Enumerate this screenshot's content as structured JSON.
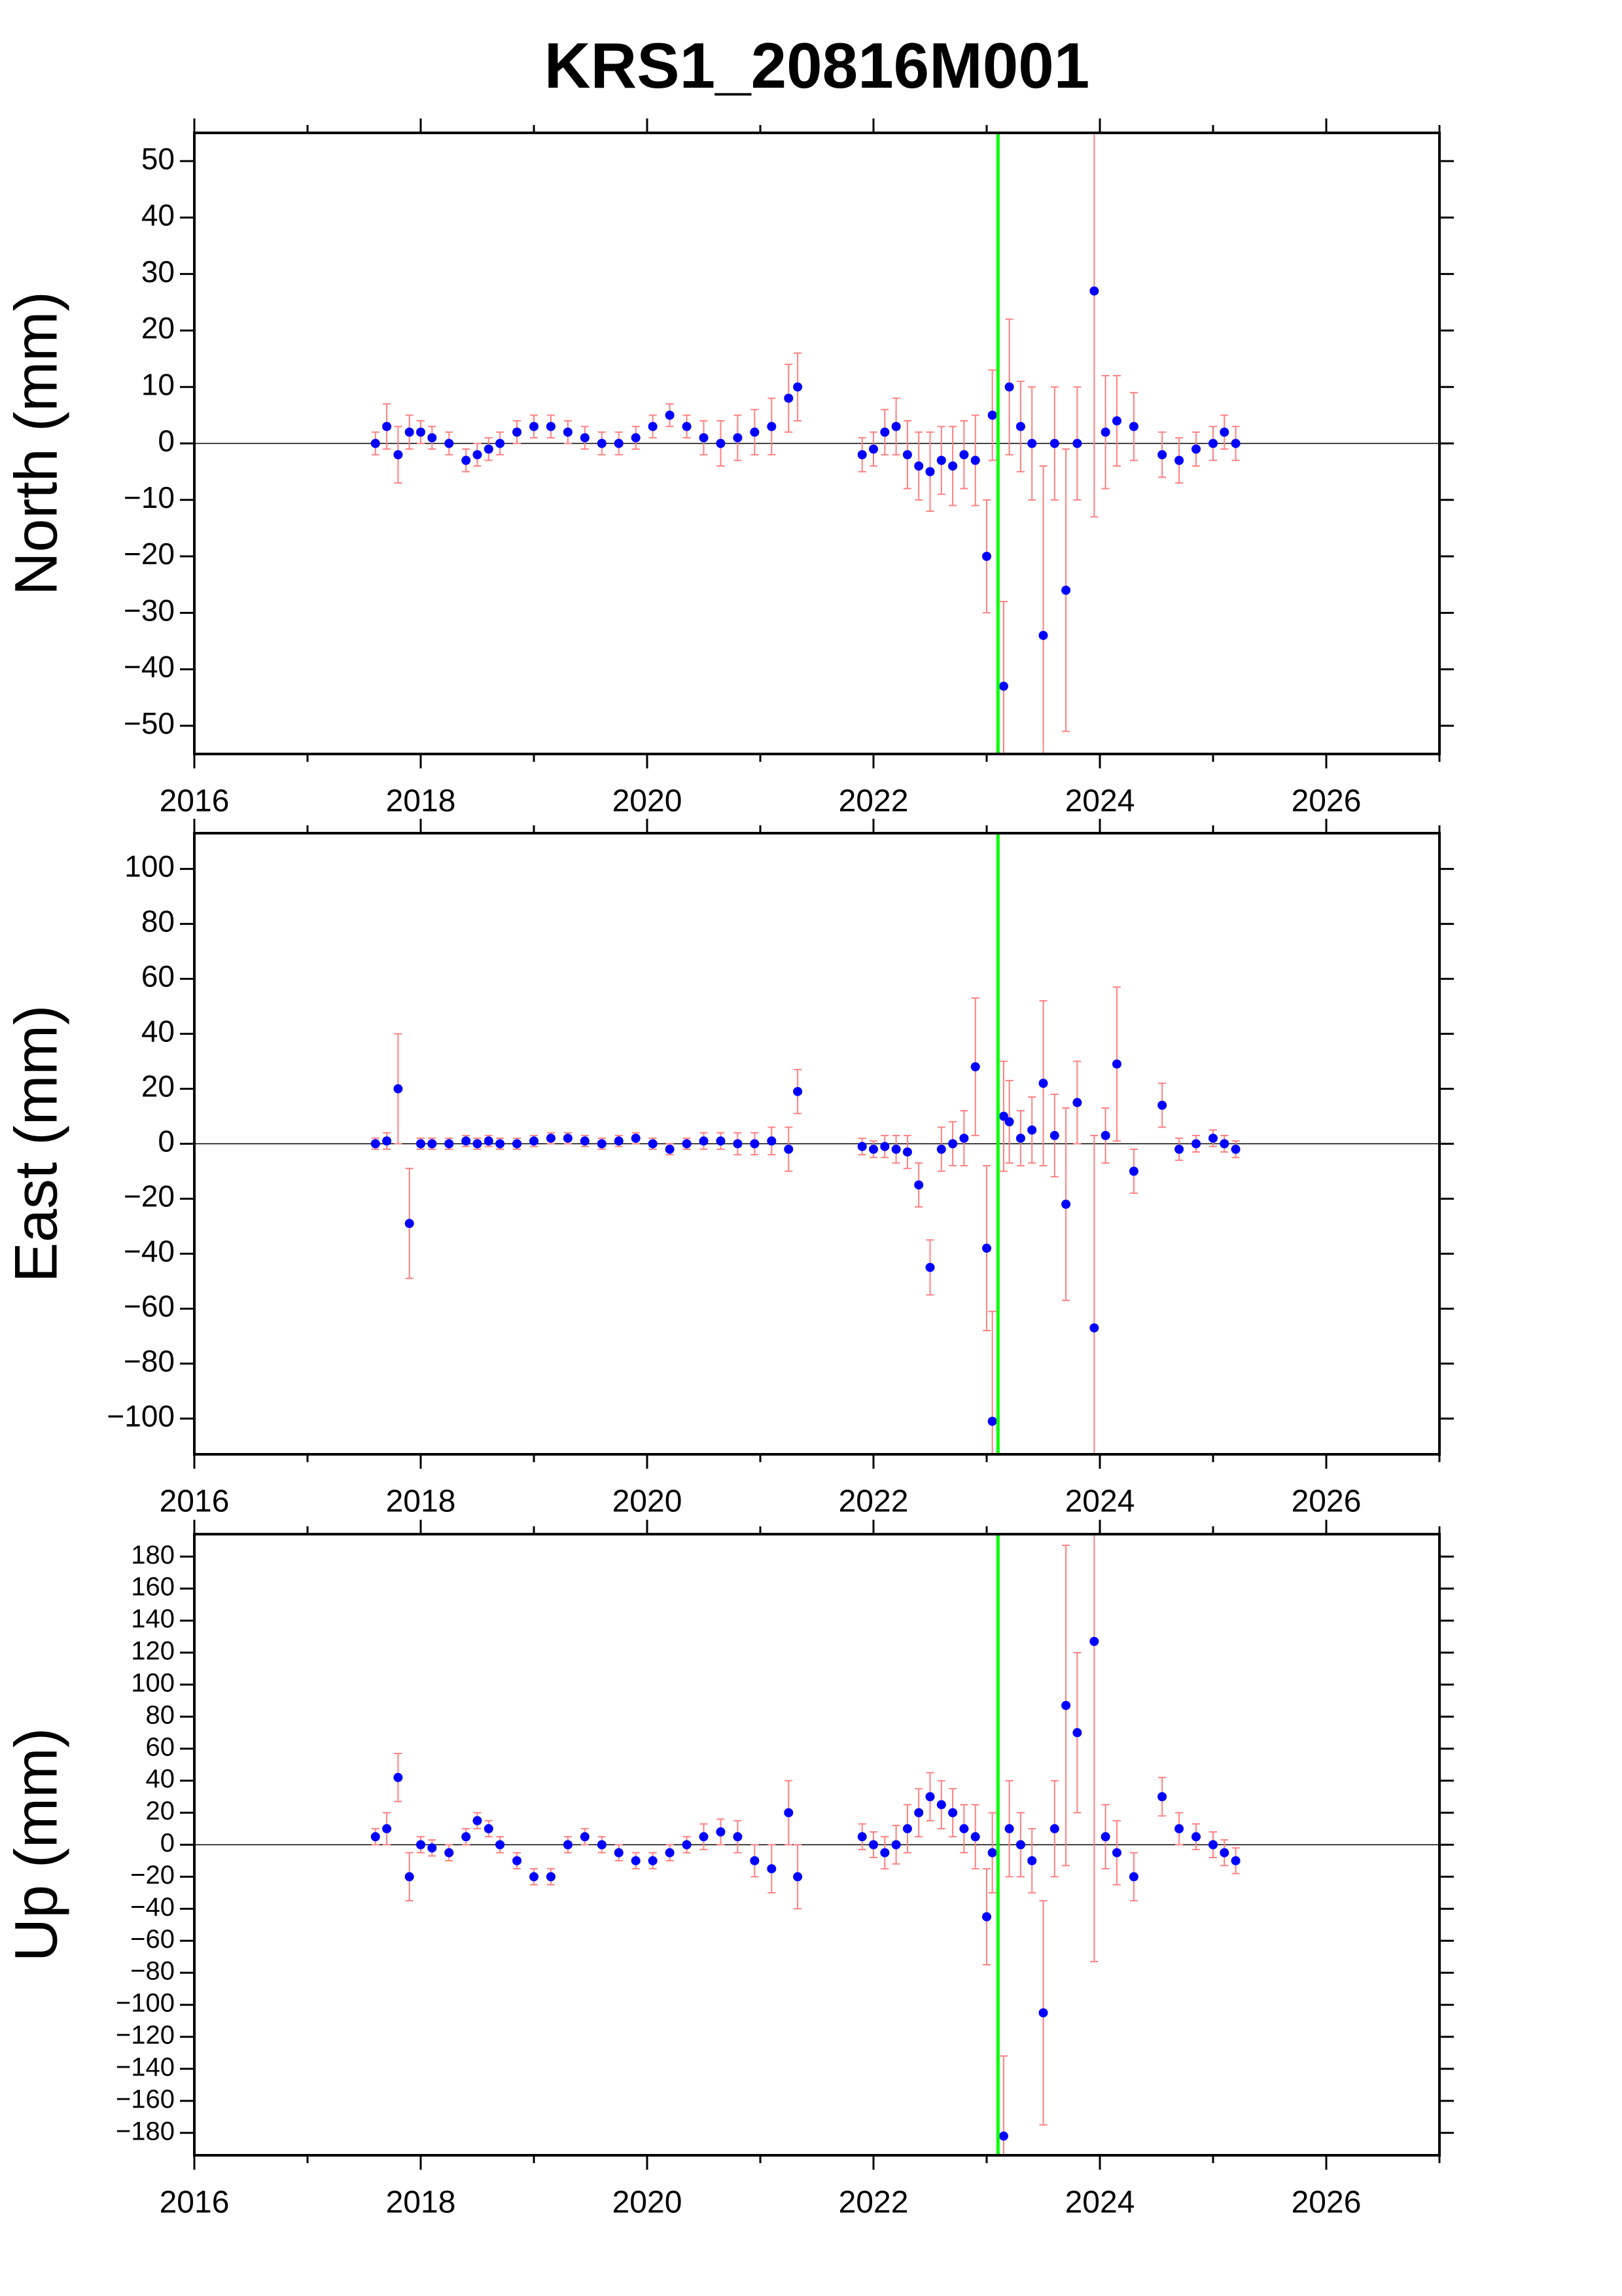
{
  "chart_data": [
    {
      "type": "scatter",
      "title": "KRS1_20816M001",
      "ylabel": "North (mm)",
      "xlim": [
        2016,
        2027
      ],
      "xticks": [
        2016,
        2018,
        2020,
        2022,
        2024,
        2026
      ],
      "xminor": [
        2017,
        2019,
        2021,
        2023,
        2025,
        2027
      ],
      "ylim": [
        -55,
        55
      ],
      "yticks": [
        {
          "value": -50,
          "label": "−50"
        },
        {
          "value": -40,
          "label": "−40"
        },
        {
          "value": -30,
          "label": "−30"
        },
        {
          "value": -20,
          "label": "−20"
        },
        {
          "value": -10,
          "label": "−10"
        },
        0,
        10,
        20,
        30,
        40,
        50
      ],
      "hline": 0,
      "vline": 2023.1,
      "vline_color": "#00ff00",
      "color": "#0000ff",
      "error_color": "#ff8080",
      "x": [
        2017.6,
        2017.7,
        2017.8,
        2017.9,
        2018.0,
        2018.1,
        2018.25,
        2018.4,
        2018.5,
        2018.6,
        2018.7,
        2018.85,
        2019.0,
        2019.15,
        2019.3,
        2019.45,
        2019.6,
        2019.75,
        2019.9,
        2020.05,
        2020.2,
        2020.35,
        2020.5,
        2020.65,
        2020.8,
        2020.95,
        2021.1,
        2021.25,
        2021.33,
        2021.9,
        2022.0,
        2022.1,
        2022.2,
        2022.3,
        2022.4,
        2022.5,
        2022.6,
        2022.7,
        2022.8,
        2022.9,
        2023.0,
        2023.05,
        2023.15,
        2023.2,
        2023.3,
        2023.4,
        2023.5,
        2023.6,
        2023.7,
        2023.8,
        2023.95,
        2024.05,
        2024.15,
        2024.3,
        2024.55,
        2024.7,
        2024.85,
        2025.0,
        2025.1,
        2025.2
      ],
      "values": [
        0,
        3,
        -2,
        2,
        2,
        1,
        0,
        -3,
        -2,
        -1,
        0,
        2,
        3,
        3,
        2,
        1,
        0,
        0,
        1,
        3,
        5,
        3,
        1,
        0,
        1,
        2,
        3,
        8,
        10,
        -2,
        -1,
        2,
        3,
        -2,
        -4,
        -5,
        -3,
        -4,
        -2,
        -3,
        -20,
        5,
        -43,
        10,
        3,
        0,
        -34,
        0,
        -26,
        0,
        27,
        2,
        4,
        3,
        -2,
        -3,
        -1,
        0,
        2,
        0
      ],
      "errors": [
        2,
        4,
        5,
        3,
        2,
        2,
        2,
        2,
        2,
        2,
        2,
        2,
        2,
        2,
        2,
        2,
        2,
        2,
        2,
        2,
        2,
        2,
        3,
        4,
        4,
        4,
        5,
        6,
        6,
        3,
        3,
        4,
        5,
        6,
        6,
        7,
        6,
        7,
        6,
        8,
        10,
        8,
        15,
        12,
        8,
        10,
        30,
        10,
        25,
        10,
        40,
        10,
        8,
        6,
        4,
        4,
        3,
        3,
        3,
        3
      ]
    },
    {
      "type": "scatter",
      "ylabel": "East (mm)",
      "xlim": [
        2016,
        2027
      ],
      "xticks": [
        2016,
        2018,
        2020,
        2022,
        2024,
        2026
      ],
      "xminor": [
        2017,
        2019,
        2021,
        2023,
        2025,
        2027
      ],
      "ylim": [
        -113,
        113
      ],
      "yticks": [
        {
          "value": -100,
          "label": "−100"
        },
        {
          "value": -80,
          "label": "−80"
        },
        {
          "value": -60,
          "label": "−60"
        },
        {
          "value": -40,
          "label": "−40"
        },
        {
          "value": -20,
          "label": "−20"
        },
        0,
        20,
        40,
        60,
        80,
        100
      ],
      "hline": 0,
      "vline": 2023.1,
      "vline_color": "#00ff00",
      "color": "#0000ff",
      "error_color": "#ff8080",
      "x": [
        2017.6,
        2017.7,
        2017.8,
        2017.9,
        2018.0,
        2018.1,
        2018.25,
        2018.4,
        2018.5,
        2018.6,
        2018.7,
        2018.85,
        2019.0,
        2019.15,
        2019.3,
        2019.45,
        2019.6,
        2019.75,
        2019.9,
        2020.05,
        2020.2,
        2020.35,
        2020.5,
        2020.65,
        2020.8,
        2020.95,
        2021.1,
        2021.25,
        2021.33,
        2021.9,
        2022.0,
        2022.1,
        2022.2,
        2022.3,
        2022.4,
        2022.5,
        2022.6,
        2022.7,
        2022.8,
        2022.9,
        2023.0,
        2023.05,
        2023.15,
        2023.2,
        2023.3,
        2023.4,
        2023.5,
        2023.6,
        2023.7,
        2023.8,
        2023.95,
        2024.05,
        2024.15,
        2024.3,
        2024.55,
        2024.7,
        2024.85,
        2025.0,
        2025.1,
        2025.2
      ],
      "values": [
        0,
        1,
        20,
        -29,
        0,
        0,
        0,
        1,
        0,
        1,
        0,
        0,
        1,
        2,
        2,
        1,
        0,
        1,
        2,
        0,
        -2,
        0,
        1,
        1,
        0,
        0,
        1,
        -2,
        19,
        -1,
        -2,
        -1,
        -2,
        -3,
        -15,
        -45,
        -2,
        0,
        2,
        28,
        -38,
        -101,
        10,
        8,
        2,
        5,
        22,
        3,
        -22,
        15,
        -67,
        3,
        29,
        -10,
        14,
        -2,
        0,
        2,
        0,
        -2
      ],
      "errors": [
        2,
        3,
        20,
        20,
        2,
        2,
        2,
        2,
        2,
        2,
        2,
        2,
        2,
        2,
        2,
        2,
        2,
        2,
        2,
        2,
        2,
        2,
        3,
        3,
        4,
        4,
        5,
        8,
        8,
        3,
        3,
        4,
        5,
        6,
        8,
        10,
        8,
        8,
        10,
        25,
        30,
        40,
        20,
        15,
        10,
        12,
        30,
        15,
        35,
        15,
        70,
        10,
        28,
        8,
        8,
        4,
        3,
        3,
        3,
        3
      ]
    },
    {
      "type": "scatter",
      "ylabel": "Up (mm)",
      "xlim": [
        2016,
        2027
      ],
      "xticks": [
        2016,
        2018,
        2020,
        2022,
        2024,
        2026
      ],
      "xminor": [
        2017,
        2019,
        2021,
        2023,
        2025,
        2027
      ],
      "ylim": [
        -194,
        194
      ],
      "yticks": [
        {
          "value": -180,
          "label": "−180"
        },
        {
          "value": -160,
          "label": "−160"
        },
        {
          "value": -140,
          "label": "−140"
        },
        {
          "value": -120,
          "label": "−120"
        },
        {
          "value": -100,
          "label": "−100"
        },
        {
          "value": -80,
          "label": "−80"
        },
        {
          "value": -60,
          "label": "−60"
        },
        {
          "value": -40,
          "label": "−40"
        },
        {
          "value": -20,
          "label": "−20"
        },
        0,
        20,
        40,
        60,
        80,
        100,
        120,
        140,
        160,
        180
      ],
      "hline": 0,
      "vline": 2023.1,
      "vline_color": "#00ff00",
      "color": "#0000ff",
      "error_color": "#ff8080",
      "x": [
        2017.6,
        2017.7,
        2017.8,
        2017.9,
        2018.0,
        2018.1,
        2018.25,
        2018.4,
        2018.5,
        2018.6,
        2018.7,
        2018.85,
        2019.0,
        2019.15,
        2019.3,
        2019.45,
        2019.6,
        2019.75,
        2019.9,
        2020.05,
        2020.2,
        2020.35,
        2020.5,
        2020.65,
        2020.8,
        2020.95,
        2021.1,
        2021.25,
        2021.33,
        2021.9,
        2022.0,
        2022.1,
        2022.2,
        2022.3,
        2022.4,
        2022.5,
        2022.6,
        2022.7,
        2022.8,
        2022.9,
        2023.0,
        2023.05,
        2023.15,
        2023.2,
        2023.3,
        2023.4,
        2023.5,
        2023.6,
        2023.7,
        2023.8,
        2023.95,
        2024.05,
        2024.15,
        2024.3,
        2024.55,
        2024.7,
        2024.85,
        2025.0,
        2025.1,
        2025.2
      ],
      "values": [
        5,
        10,
        42,
        -20,
        0,
        -2,
        -5,
        5,
        15,
        10,
        0,
        -10,
        -20,
        -20,
        0,
        5,
        0,
        -5,
        -10,
        -10,
        -5,
        0,
        5,
        8,
        5,
        -10,
        -15,
        20,
        -20,
        5,
        0,
        -5,
        0,
        10,
        20,
        30,
        25,
        20,
        10,
        5,
        -45,
        -5,
        -182,
        10,
        0,
        -10,
        -105,
        10,
        87,
        70,
        127,
        5,
        -5,
        -20,
        30,
        10,
        5,
        0,
        -5,
        -10
      ],
      "errors": [
        5,
        10,
        15,
        15,
        5,
        5,
        5,
        5,
        5,
        5,
        5,
        5,
        5,
        5,
        5,
        5,
        5,
        5,
        5,
        5,
        5,
        5,
        8,
        8,
        10,
        10,
        15,
        20,
        20,
        8,
        8,
        10,
        12,
        15,
        15,
        15,
        15,
        15,
        15,
        20,
        30,
        25,
        50,
        30,
        20,
        20,
        70,
        30,
        100,
        50,
        200,
        20,
        20,
        15,
        12,
        10,
        8,
        8,
        8,
        8
      ]
    }
  ]
}
